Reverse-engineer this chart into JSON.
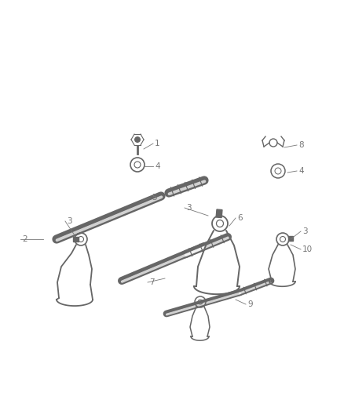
{
  "bg_color": "#ffffff",
  "line_color": "#666666",
  "label_color": "#777777",
  "fig_width": 4.38,
  "fig_height": 5.33,
  "dpi": 100
}
